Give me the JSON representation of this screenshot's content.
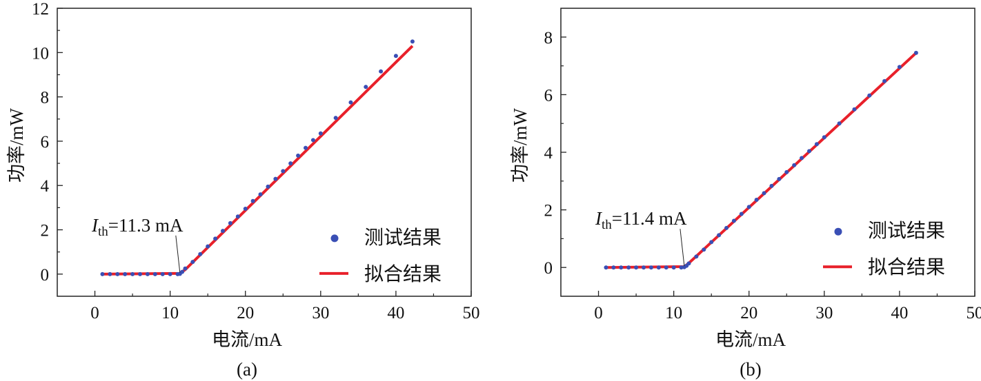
{
  "chart_data": [
    {
      "type": "scatter",
      "panel_label": "(a)",
      "xlabel": "电流/mA",
      "ylabel": "功率/mW",
      "xlim": [
        -5,
        50
      ],
      "ylim": [
        -1,
        12
      ],
      "xticks": [
        0,
        10,
        20,
        30,
        40,
        50
      ],
      "yticks": [
        0,
        2,
        4,
        6,
        8,
        10,
        12
      ],
      "annotation": {
        "symbol": "I",
        "subscript": "th",
        "text": "=11.3 mA",
        "threshold": 11.3
      },
      "legend": {
        "placement": "bottom-right",
        "entries": [
          "测试结果",
          "拟合结果"
        ]
      },
      "series": [
        {
          "name": "测试结果",
          "kind": "points",
          "color": "#3a4fb5",
          "x": [
            1,
            2,
            3,
            4,
            5,
            6,
            7,
            8,
            9,
            10,
            11,
            11.3,
            11.6,
            12,
            13,
            14,
            15,
            16,
            17,
            18,
            19,
            20,
            21,
            22,
            23,
            24,
            25,
            26,
            27,
            28,
            29,
            30,
            32,
            34,
            36,
            38,
            40,
            42.2
          ],
          "y": [
            0,
            0,
            0,
            0,
            0,
            0,
            0,
            0,
            0,
            0,
            0,
            0.01,
            0.1,
            0.25,
            0.55,
            0.9,
            1.25,
            1.6,
            1.95,
            2.3,
            2.6,
            2.95,
            3.3,
            3.6,
            3.95,
            4.3,
            4.65,
            5.0,
            5.35,
            5.7,
            6.05,
            6.35,
            7.05,
            7.75,
            8.45,
            9.15,
            9.85,
            10.5
          ]
        },
        {
          "name": "拟合结果",
          "kind": "line",
          "color": "#e8202a",
          "x": [
            1,
            11.3,
            12,
            42.2
          ],
          "y": [
            0,
            0.03,
            0.2,
            10.3
          ]
        }
      ]
    },
    {
      "type": "scatter",
      "panel_label": "(b)",
      "xlabel": "电流/mA",
      "ylabel": "功率/mW",
      "xlim": [
        -5,
        50
      ],
      "ylim": [
        -1,
        9
      ],
      "xticks": [
        0,
        10,
        20,
        30,
        40,
        50
      ],
      "yticks": [
        0,
        2,
        4,
        6,
        8
      ],
      "annotation": {
        "symbol": "I",
        "subscript": "th",
        "text": "=11.4 mA",
        "threshold": 11.4
      },
      "legend": {
        "placement": "bottom-right",
        "entries": [
          "测试结果",
          "拟合结果"
        ]
      },
      "series": [
        {
          "name": "测试结果",
          "kind": "points",
          "color": "#3a4fb5",
          "x": [
            1,
            2,
            3,
            4,
            5,
            6,
            7,
            8,
            9,
            10,
            11,
            11.4,
            11.7,
            12,
            13,
            14,
            15,
            16,
            17,
            18,
            19,
            20,
            21,
            22,
            23,
            24,
            25,
            26,
            27,
            28,
            29,
            30,
            32,
            34,
            36,
            38,
            40,
            42.2
          ],
          "y": [
            0,
            0,
            0,
            0,
            0,
            0,
            0,
            0,
            0,
            0,
            0,
            0.01,
            0.06,
            0.14,
            0.38,
            0.62,
            0.88,
            1.12,
            1.37,
            1.62,
            1.86,
            2.1,
            2.35,
            2.58,
            2.83,
            3.07,
            3.31,
            3.55,
            3.8,
            4.04,
            4.28,
            4.52,
            5.0,
            5.49,
            5.97,
            6.47,
            6.96,
            7.45
          ]
        },
        {
          "name": "拟合结果",
          "kind": "line",
          "color": "#e8202a",
          "x": [
            1,
            11.4,
            12,
            42.2
          ],
          "y": [
            0,
            0.03,
            0.15,
            7.45
          ]
        }
      ]
    }
  ]
}
